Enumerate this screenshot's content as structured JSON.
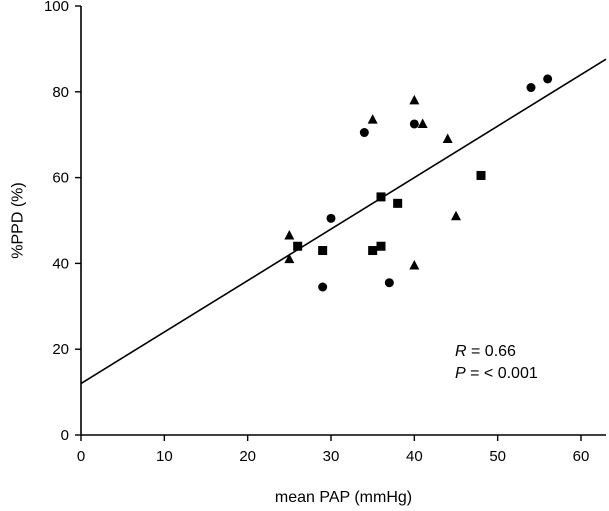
{
  "chart_data": {
    "type": "scatter",
    "title": "",
    "xlabel": "mean PAP (mmHg)",
    "ylabel": "%PPD (%)",
    "xlim": [
      0,
      63
    ],
    "ylim": [
      0,
      100
    ],
    "xticks": [
      0,
      10,
      20,
      30,
      40,
      50,
      60
    ],
    "yticks": [
      0,
      20,
      40,
      60,
      80,
      100
    ],
    "grid": false,
    "legend": "none",
    "series": [
      {
        "name": "circle",
        "marker": "circle",
        "points": [
          [
            29,
            34.5
          ],
          [
            30,
            50.5
          ],
          [
            34,
            70.5
          ],
          [
            37,
            35.5
          ],
          [
            40,
            72.5
          ],
          [
            54,
            81
          ],
          [
            56,
            83
          ]
        ]
      },
      {
        "name": "square",
        "marker": "square",
        "points": [
          [
            26,
            44
          ],
          [
            29,
            43
          ],
          [
            35,
            43
          ],
          [
            36,
            44
          ],
          [
            36,
            55.5
          ],
          [
            38,
            54
          ],
          [
            48,
            60.5
          ]
        ]
      },
      {
        "name": "triangle",
        "marker": "triangle",
        "points": [
          [
            25,
            46.5
          ],
          [
            25,
            41
          ],
          [
            35,
            73.5
          ],
          [
            40,
            78
          ],
          [
            41,
            72.5
          ],
          [
            44,
            69
          ],
          [
            45,
            51
          ],
          [
            40,
            39.5
          ]
        ]
      }
    ],
    "fit_line": {
      "intercept": 12,
      "slope": 1.2
    },
    "annotation": {
      "r_label": "R",
      "r_value": " = 0.66",
      "p_label": "P",
      "p_value": " = < 0.001"
    }
  }
}
